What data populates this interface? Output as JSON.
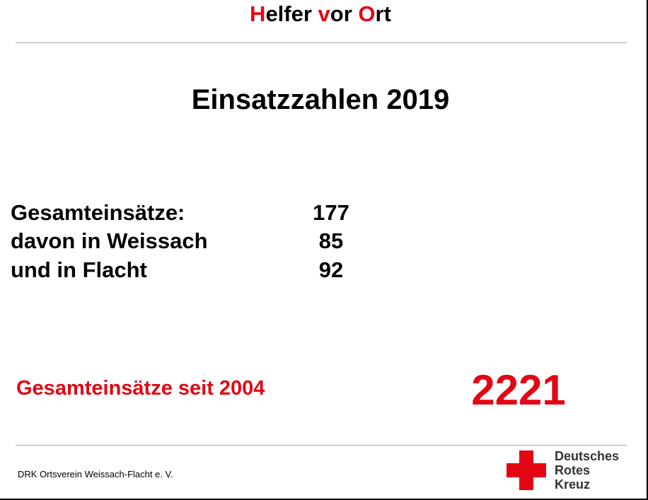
{
  "header": {
    "title_parts": [
      {
        "text": "H",
        "accent": true
      },
      {
        "text": "elfer ",
        "accent": false
      },
      {
        "text": "v",
        "accent": true
      },
      {
        "text": "or ",
        "accent": false
      },
      {
        "text": "O",
        "accent": true
      },
      {
        "text": "rt",
        "accent": false
      }
    ]
  },
  "main": {
    "heading": "Einsatzzahlen 2019",
    "stats": [
      {
        "label": "Gesamteinsätze:",
        "value": "177"
      },
      {
        "label": "davon in Weissach",
        "value": "85"
      },
      {
        "label": "und in Flacht",
        "value": "92"
      }
    ],
    "since": {
      "label": "Gesamteinsätze seit 2004",
      "value": "2221"
    }
  },
  "footer": {
    "organization": "DRK Ortsverein Weissach-Flacht e. V.",
    "logo": {
      "icon": "red-cross-icon",
      "lines": [
        "Deutsches",
        "Rotes",
        "Kreuz"
      ]
    }
  },
  "colors": {
    "accent": "#e30613",
    "text": "#000000",
    "rule": "#a6a6a6"
  }
}
